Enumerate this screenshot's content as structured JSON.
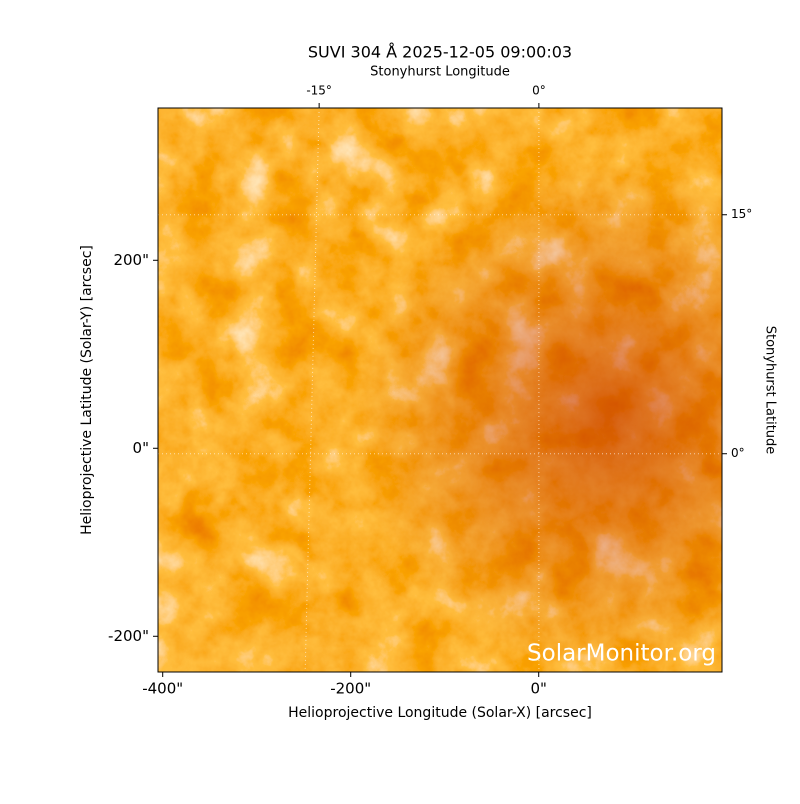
{
  "chart_data": {
    "type": "image",
    "title": "SUVI 304 Å 2025-12-05 09:00:03",
    "xlabel": "Helioprojective Longitude (Solar-X) [arcsec]",
    "ylabel": "Helioprojective Latitude (Solar-Y) [arcsec]",
    "x2label": "Stonyhurst Longitude",
    "y2label": "Stonyhurst Latitude",
    "watermark": "SolarMonitor.org",
    "xlim": [
      -405,
      195
    ],
    "ylim": [
      -238,
      362
    ],
    "xticks": [
      {
        "value": -400,
        "label": "-400\""
      },
      {
        "value": -200,
        "label": "-200\""
      },
      {
        "value": 0,
        "label": "0\""
      }
    ],
    "yticks": [
      {
        "value": -200,
        "label": "-200\""
      },
      {
        "value": 0,
        "label": "0\""
      },
      {
        "value": 200,
        "label": "200\""
      }
    ],
    "x2lim": [
      -26.0,
      12.5
    ],
    "x2ticks": [
      {
        "value": -15,
        "label": "-15°"
      },
      {
        "value": 0,
        "label": "0°"
      }
    ],
    "y2lim": [
      -13.7,
      21.7
    ],
    "y2ticks": [
      {
        "value": 0,
        "label": "0°"
      },
      {
        "value": 15,
        "label": "15°"
      }
    ],
    "grid": true
  }
}
